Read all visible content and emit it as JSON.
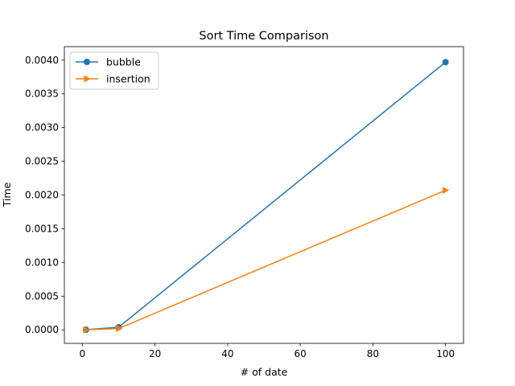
{
  "chart_data": {
    "type": "line",
    "title": "Sort Time Comparison",
    "xlabel": "# of date",
    "ylabel": "Time",
    "xlim": [
      -4.95,
      104.95
    ],
    "ylim": [
      -0.0002,
      0.0042
    ],
    "x_ticks": [
      0,
      20,
      40,
      60,
      80,
      100
    ],
    "x_tick_labels": [
      "0",
      "20",
      "40",
      "60",
      "80",
      "100"
    ],
    "y_ticks": [
      0,
      0.0005,
      0.001,
      0.0015,
      0.002,
      0.0025,
      0.003,
      0.0035,
      0.004
    ],
    "y_tick_labels": [
      "0.0000",
      "0.0005",
      "0.0010",
      "0.0015",
      "0.0020",
      "0.0025",
      "0.0030",
      "0.0035",
      "0.0040"
    ],
    "grid": false,
    "legend_position": "upper-left",
    "series": [
      {
        "name": "bubble",
        "color": "#1f77b4",
        "marker": "circle",
        "x": [
          1,
          10,
          100
        ],
        "y": [
          2e-06,
          4e-05,
          0.00397
        ]
      },
      {
        "name": "insertion",
        "color": "#ff7f0e",
        "marker": "triangle-right",
        "x": [
          1,
          10,
          100
        ],
        "y": [
          1e-06,
          2e-05,
          0.00207
        ]
      }
    ]
  }
}
